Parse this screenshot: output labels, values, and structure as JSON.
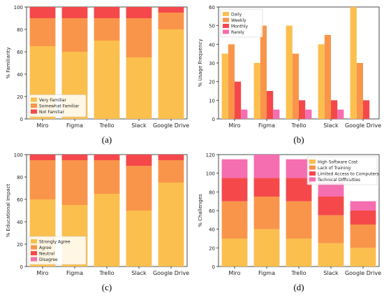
{
  "colors": {
    "c0": "#FBBF4E",
    "c1": "#F9954A",
    "c2": "#F5484B",
    "c3": "#F56EAF"
  },
  "chart_data": [
    {
      "panel_label": "(a)",
      "type": "bar",
      "stacked": true,
      "ylabel": "% Familiarity",
      "ylim": [
        0,
        100
      ],
      "yticks": [
        0,
        20,
        40,
        60,
        80,
        100
      ],
      "categories": [
        "Miro",
        "Figma",
        "Trello",
        "Slack",
        "Google Drive"
      ],
      "legend_position": "bottom-left",
      "grid": false,
      "series": [
        {
          "name": "Very Familiar",
          "values": [
            65,
            60,
            70,
            55,
            80
          ]
        },
        {
          "name": "Somewhat Familiar",
          "values": [
            25,
            30,
            20,
            35,
            15
          ]
        },
        {
          "name": "Not Familiar",
          "values": [
            10,
            10,
            10,
            10,
            5
          ]
        }
      ]
    },
    {
      "panel_label": "(b)",
      "type": "bar",
      "grouped": true,
      "ylabel": "% Usage Frequency",
      "ylim": [
        0,
        60
      ],
      "yticks": [
        0,
        10,
        20,
        30,
        40,
        50,
        60
      ],
      "categories": [
        "Miro",
        "Figma",
        "Trello",
        "Slack",
        "Google Drive"
      ],
      "legend_position": "top-left",
      "grid": false,
      "series": [
        {
          "name": "Daily",
          "values": [
            35,
            30,
            50,
            40,
            60
          ]
        },
        {
          "name": "Weekly",
          "values": [
            40,
            50,
            35,
            45,
            30
          ]
        },
        {
          "name": "Monthly",
          "values": [
            20,
            15,
            10,
            10,
            10
          ]
        },
        {
          "name": "Rarely",
          "values": [
            5,
            5,
            5,
            5,
            0
          ]
        }
      ]
    },
    {
      "panel_label": "(c)",
      "type": "bar",
      "stacked": true,
      "ylabel": "% Educational Impact",
      "ylim": [
        0,
        100
      ],
      "yticks": [
        0,
        20,
        40,
        60,
        80,
        100
      ],
      "categories": [
        "Miro",
        "Figma",
        "Trello",
        "Slack",
        "Google Drive"
      ],
      "legend_position": "bottom-left",
      "grid": false,
      "series": [
        {
          "name": "Strongly Agree",
          "values": [
            60,
            55,
            65,
            50,
            75
          ]
        },
        {
          "name": "Agree",
          "values": [
            35,
            40,
            30,
            40,
            20
          ]
        },
        {
          "name": "Neutral",
          "values": [
            5,
            5,
            5,
            10,
            5
          ]
        },
        {
          "name": "Disagree",
          "values": [
            0,
            0,
            0,
            0,
            0
          ]
        }
      ]
    },
    {
      "panel_label": "(d)",
      "type": "bar",
      "stacked": true,
      "ylabel": "% Challenges",
      "ylim": [
        0,
        120
      ],
      "yticks": [
        0,
        20,
        40,
        60,
        80,
        100,
        120
      ],
      "categories": [
        "Miro",
        "Figma",
        "Trello",
        "Slack",
        "Google Drive"
      ],
      "legend_position": "top-right",
      "grid": false,
      "series": [
        {
          "name": "High Software Cost",
          "values": [
            30,
            40,
            30,
            25,
            20
          ]
        },
        {
          "name": "Lack of Training",
          "values": [
            40,
            35,
            40,
            30,
            25
          ]
        },
        {
          "name": "Limited Access to Computers",
          "values": [
            25,
            20,
            25,
            20,
            15
          ]
        },
        {
          "name": "Technical Difficulties",
          "values": [
            20,
            25,
            20,
            15,
            10
          ]
        }
      ]
    }
  ]
}
